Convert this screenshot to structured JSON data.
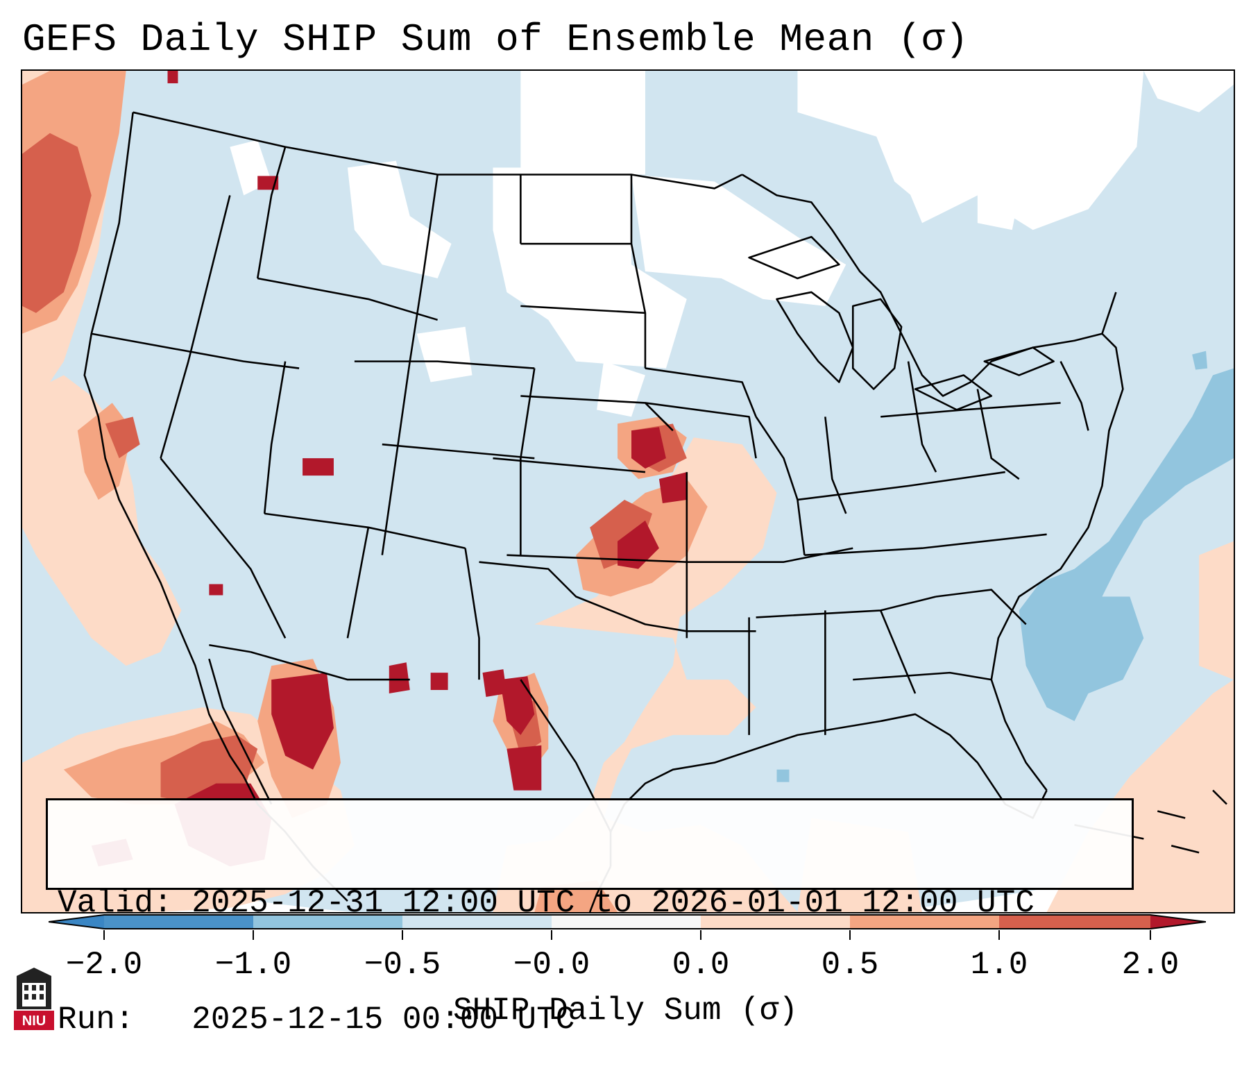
{
  "title": "GEFS Daily SHIP Sum of Ensemble Mean (σ)",
  "info": {
    "valid_label": "Valid:",
    "valid_value": "2025-12-31 12:00 UTC to 2026-01-01 12:00 UTC",
    "run_label": "Run:",
    "run_value": "2025-12-15 00:00 UTC"
  },
  "colorbar": {
    "label": "SHIP Daily Sum (σ)",
    "ticks": [
      "−2.0",
      "−1.0",
      "−0.5",
      "−0.0",
      "0.0",
      "0.5",
      "1.0",
      "2.0"
    ],
    "colors": {
      "below_min": "#3a86c4",
      "neg_2_to_1": "#4a92c8",
      "neg_1_to_05": "#92c5de",
      "neg_05_to_0": "#d1e5f0",
      "zero_band": "#f7f7f7",
      "pos_0_to_05": "#fddbc7",
      "pos_05_to_1": "#f4a582",
      "pos_1_to_2": "#d6604d",
      "above_max": "#b2182b"
    }
  },
  "map": {
    "land_color": "#d1e5f0",
    "ocean_color": "#d1e5f0",
    "white_area_color": "#ffffff",
    "boundary_color": "#000000"
  },
  "logo": {
    "text": "NIU",
    "color": "#c8102e"
  }
}
